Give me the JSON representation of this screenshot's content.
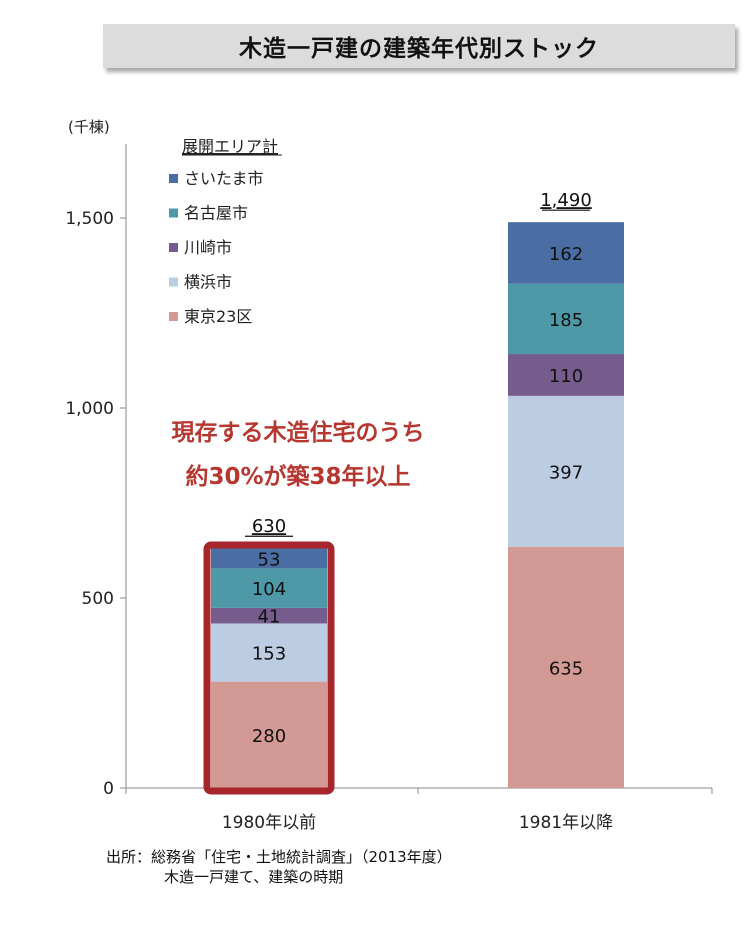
{
  "title": "木造一戸建の建築年代別ストック",
  "chart_data": {
    "type": "bar",
    "stacked": true,
    "unit_label": "(千棟)",
    "categories": [
      "1980年以前",
      "1981年以降"
    ],
    "totals": [
      "630",
      "1,490"
    ],
    "ylim": [
      0,
      1700
    ],
    "yticks": [
      0,
      500,
      1000,
      1500
    ],
    "ytick_labels": [
      "0",
      "500",
      "1,000",
      "1,500"
    ],
    "legend_title": "展開エリア計",
    "legend_position": "top-left",
    "series": [
      {
        "name": "東京23区",
        "color": "#d39995",
        "values": [
          280,
          635
        ]
      },
      {
        "name": "横浜市",
        "color": "#bccde3",
        "values": [
          153,
          397
        ]
      },
      {
        "name": "川崎市",
        "color": "#755c8d",
        "values": [
          41,
          110
        ]
      },
      {
        "name": "名古屋市",
        "color": "#4e99a8",
        "values": [
          104,
          185
        ]
      },
      {
        "name": "さいたま市",
        "color": "#4a6da4",
        "values": [
          53,
          162
        ]
      }
    ],
    "highlight_category": "1980年以前",
    "highlight_color": "#a6262b",
    "annotation_lines": [
      "現存する木造住宅のうち",
      "約30%が築38年以上"
    ],
    "annotation_color": "#b7362f"
  },
  "source_lines": [
    "出所：総務省「住宅・土地統計調査」（2013年度）",
    "木造一戸建て、建築の時期"
  ]
}
